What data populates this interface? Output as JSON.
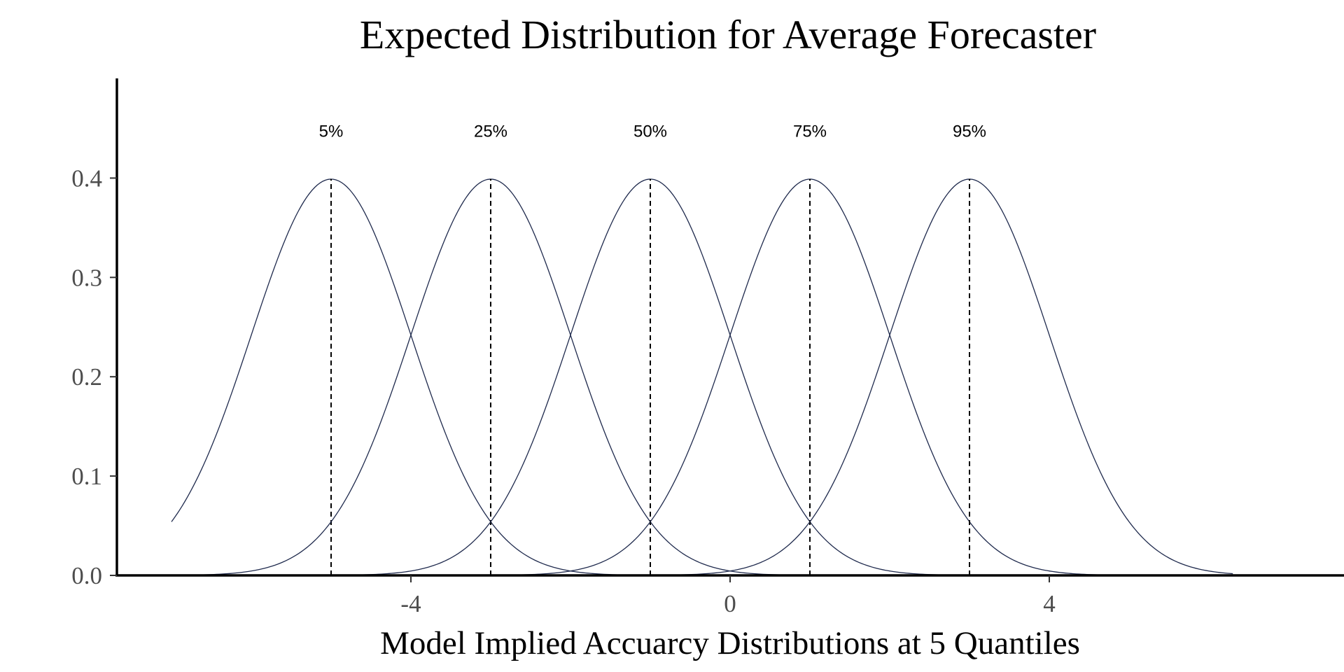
{
  "chart_data": {
    "type": "line",
    "title": "Expected Distribution for Average Forecaster",
    "xlabel": "Model Implied Accuarcy Distributions at 5 Quantiles",
    "ylabel": "",
    "xlim": [
      -7.35,
      7.65
    ],
    "ylim": [
      0,
      0.5
    ],
    "x_ticks": [
      -4,
      0,
      4
    ],
    "x_tick_labels": [
      "-4",
      "0",
      "4"
    ],
    "y_ticks": [
      0.0,
      0.1,
      0.2,
      0.3,
      0.4
    ],
    "y_tick_labels": [
      "0.0",
      "0.1",
      "0.2",
      "0.3",
      "0.4"
    ],
    "grid": false,
    "legend": "none",
    "line_color": "#1f2a4d",
    "distribution": "normal",
    "sd": 1,
    "x_range": [
      -7,
      6.3
    ],
    "series": [
      {
        "quantile_label": "5%",
        "mean": -5,
        "peak": 0.399
      },
      {
        "quantile_label": "25%",
        "mean": -3,
        "peak": 0.399
      },
      {
        "quantile_label": "50%",
        "mean": -1,
        "peak": 0.399
      },
      {
        "quantile_label": "75%",
        "mean": 1,
        "peak": 0.399
      },
      {
        "quantile_label": "95%",
        "mean": 3,
        "peak": 0.399
      }
    ],
    "quantile_label_y": 0.447
  }
}
